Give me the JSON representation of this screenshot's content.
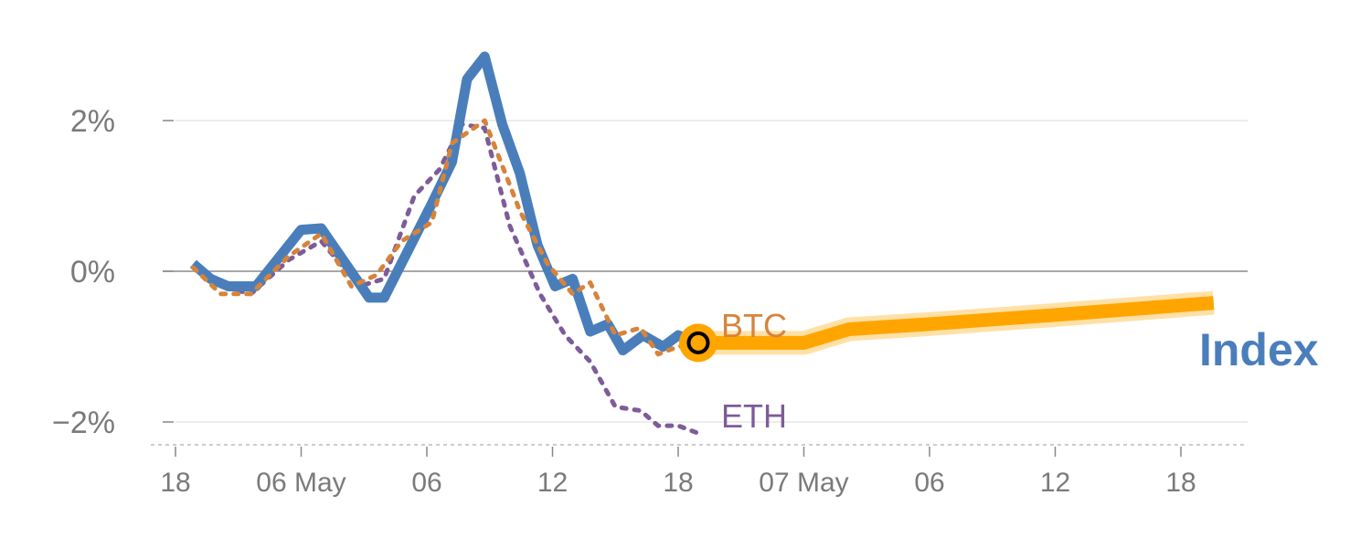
{
  "chart_data": {
    "type": "line",
    "title": "",
    "xlabel": "",
    "ylabel": "",
    "ylim": [
      -2.3,
      3.0
    ],
    "xlim": [
      0,
      42.5
    ],
    "grid": true,
    "y_ticks": [
      {
        "value": 2,
        "label": "2%"
      },
      {
        "value": 0,
        "label": "0%"
      },
      {
        "value": -2,
        "label": "−2%"
      }
    ],
    "x_ticks": [
      {
        "x": 0,
        "label": "18"
      },
      {
        "x": 5,
        "label": "06 May"
      },
      {
        "x": 10,
        "label": "06"
      },
      {
        "x": 15,
        "label": "12"
      },
      {
        "x": 20,
        "label": "18"
      },
      {
        "x": 25,
        "label": "07 May"
      },
      {
        "x": 30,
        "label": "06"
      },
      {
        "x": 35,
        "label": "12"
      },
      {
        "x": 40,
        "label": "18"
      }
    ],
    "series": [
      {
        "name": "Index",
        "color": "#4a7ebb",
        "style": "solid",
        "x": [
          0.7,
          1.4,
          2.1,
          3.2,
          5.0,
          5.8,
          7.7,
          8.3,
          10.2,
          11.0,
          11.6,
          12.3,
          13.0,
          13.7,
          14.4,
          15.1,
          15.8,
          16.5,
          17.2,
          17.8,
          18.6,
          19.4,
          20.0,
          20.8
        ],
        "y": [
          0.1,
          -0.1,
          -0.2,
          -0.2,
          0.55,
          0.57,
          -0.35,
          -0.35,
          0.9,
          1.45,
          2.55,
          2.85,
          1.95,
          1.3,
          0.35,
          -0.2,
          -0.1,
          -0.8,
          -0.7,
          -1.05,
          -0.85,
          -1.0,
          -0.85,
          -0.95
        ]
      },
      {
        "name": "BTC",
        "color": "#d6843a",
        "style": "dotted",
        "x": [
          0.7,
          1.8,
          3.0,
          4.5,
          5.8,
          7.0,
          8.0,
          9.0,
          10.2,
          11.0,
          12.3,
          13.7,
          14.8,
          15.8,
          16.5,
          17.5,
          18.5,
          19.2,
          20.0,
          20.8
        ],
        "y": [
          0.05,
          -0.3,
          -0.3,
          0.2,
          0.5,
          -0.2,
          -0.05,
          0.4,
          0.65,
          1.7,
          2.0,
          0.8,
          0.1,
          -0.3,
          -0.15,
          -0.85,
          -0.75,
          -1.1,
          -1.0,
          -0.95
        ]
      },
      {
        "name": "ETH",
        "color": "#7d5c99",
        "style": "dotted",
        "x": [
          0.7,
          1.8,
          3.0,
          4.5,
          5.8,
          7.3,
          8.3,
          9.5,
          10.5,
          11.4,
          12.3,
          13.3,
          14.5,
          15.5,
          16.5,
          17.5,
          18.5,
          19.2,
          20.0,
          20.8
        ],
        "y": [
          0.05,
          -0.2,
          -0.3,
          0.15,
          0.4,
          -0.2,
          -0.1,
          1.0,
          1.35,
          1.95,
          1.9,
          0.6,
          -0.3,
          -0.85,
          -1.2,
          -1.8,
          -1.85,
          -2.05,
          -2.05,
          -2.15
        ]
      },
      {
        "name": "Index forecast",
        "color": "#ffa500",
        "style": "band",
        "x": [
          20.8,
          23.0,
          25.0,
          26.8,
          30.0,
          35.0,
          41.3
        ],
        "y": [
          -0.95,
          -0.95,
          -0.95,
          -0.77,
          -0.7,
          -0.58,
          -0.42
        ]
      }
    ],
    "marker": {
      "x": 20.8,
      "y": -0.95,
      "color": "#ffa500"
    },
    "annotations": [
      {
        "text": "BTC",
        "color": "#d6843a"
      },
      {
        "text": "ETH",
        "color": "#7d5c99"
      },
      {
        "text": "Index",
        "color": "#4a7ebb"
      }
    ]
  }
}
